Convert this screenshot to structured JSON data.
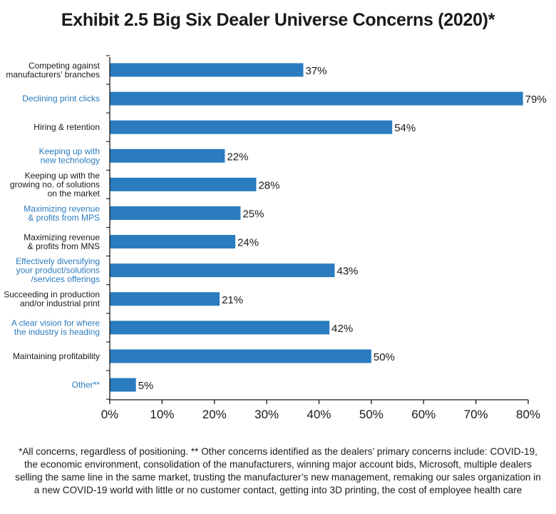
{
  "chart_data": {
    "type": "bar",
    "orientation": "horizontal",
    "title": "Exhibit 2.5 Big Six Dealer Universe Concerns (2020)*",
    "categories": [
      [
        "Competing against",
        "manufacturers’ branches"
      ],
      [
        "Declining print clicks"
      ],
      [
        "Hiring & retention"
      ],
      [
        "Keeping up with",
        "new technology"
      ],
      [
        "Keeping up with the",
        "growing no. of solutions",
        "on the market"
      ],
      [
        "Maximizing revenue",
        "& profits from MPS"
      ],
      [
        "Maximizing revenue",
        "& profits from MNS"
      ],
      [
        "Effectively diversifying",
        "your product/solutions",
        "/services offerings"
      ],
      [
        "Succeeding in production",
        "and/or industrial print"
      ],
      [
        "A clear vision for where",
        "the industry is heading"
      ],
      [
        "Maintaining profitability"
      ],
      [
        "Other**"
      ]
    ],
    "label_colors": [
      "#1a1a1a",
      "#2a7bbf",
      "#1a1a1a",
      "#2a7bbf",
      "#1a1a1a",
      "#2a7bbf",
      "#1a1a1a",
      "#2a7bbf",
      "#1a1a1a",
      "#2a7bbf",
      "#1a1a1a",
      "#2a7bbf"
    ],
    "values": [
      37,
      79,
      54,
      22,
      28,
      25,
      24,
      43,
      21,
      42,
      50,
      5
    ],
    "value_labels": [
      "37%",
      "79%",
      "54%",
      "22%",
      "28%",
      "25%",
      "24%",
      "43%",
      "21%",
      "42%",
      "50%",
      "5%"
    ],
    "xlim": [
      0,
      80
    ],
    "xticks": [
      "0%",
      "10%",
      "20%",
      "30%",
      "40%",
      "50%",
      "60%",
      "70%",
      "80%"
    ],
    "bar_color": "#2a7bbf",
    "grid": false
  },
  "footnote": "*All concerns, regardless of positioning. ** Other concerns identified as the dealers’ primary concerns include: COVID-19, the economic environment, consolidation of the manufacturers, winning major account bids, Microsoft, multiple dealers selling the same line in the same market, trusting the manufacturer’s new management, remaking our sales organization in a new COVID-19 world with little or no customer contact, getting into 3D printing, the cost of employee health care"
}
